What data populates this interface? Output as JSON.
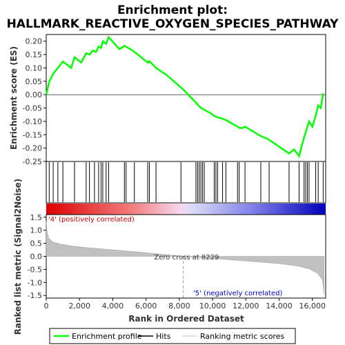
{
  "chart_data": {
    "type": "line",
    "title_line1": "Enrichment plot:",
    "title_line2": "HALLMARK_REACTIVE_OXYGEN_SPECIES_PATHWAY",
    "top_panel": {
      "ylabel": "Enrichment score (ES)",
      "ylim": [
        -0.25,
        0.225
      ],
      "yticks": [
        "0.20",
        "0.15",
        "0.10",
        "0.05",
        "0.00",
        "-0.05",
        "-0.10",
        "-0.15",
        "-0.20",
        "-0.25"
      ],
      "ytick_values": [
        0.2,
        0.15,
        0.1,
        0.05,
        0.0,
        -0.05,
        -0.1,
        -0.15,
        -0.2,
        -0.25
      ],
      "series_color": "#00ff00",
      "x": [
        0,
        180,
        420,
        700,
        1000,
        1500,
        1700,
        2100,
        2400,
        2600,
        2800,
        3000,
        3150,
        3300,
        3400,
        3600,
        3750,
        4400,
        4700,
        5200,
        6100,
        6200,
        6600,
        7200,
        8229,
        9000,
        9300,
        9900,
        10100,
        10300,
        10600,
        10800,
        11500,
        11650,
        11800,
        11950,
        12900,
        13300,
        14600,
        14900,
        15200,
        15500,
        15650,
        15800,
        16000,
        16200,
        16350,
        16500,
        16650
      ],
      "y": [
        0.0,
        0.048,
        0.078,
        0.1,
        0.124,
        0.1,
        0.14,
        0.12,
        0.155,
        0.15,
        0.165,
        0.16,
        0.18,
        0.175,
        0.2,
        0.19,
        0.215,
        0.17,
        0.183,
        0.165,
        0.12,
        0.125,
        0.1,
        0.075,
        0.02,
        -0.03,
        -0.05,
        -0.07,
        -0.08,
        -0.085,
        -0.09,
        -0.095,
        -0.12,
        -0.125,
        -0.125,
        -0.12,
        -0.155,
        -0.165,
        -0.22,
        -0.205,
        -0.23,
        -0.16,
        -0.13,
        -0.1,
        -0.12,
        -0.08,
        -0.04,
        -0.05,
        0.005
      ]
    },
    "hits": [
      180,
      420,
      700,
      1000,
      1700,
      2400,
      2600,
      2900,
      3150,
      3300,
      3400,
      3600,
      3750,
      4700,
      4800,
      5300,
      6100,
      6200,
      6600,
      8100,
      9000,
      9100,
      9200,
      9300,
      9400,
      9500,
      10100,
      10200,
      10300,
      10600,
      10800,
      11500,
      11600,
      11950,
      12900,
      13400,
      14600,
      15200,
      15500,
      15600,
      15700,
      15800,
      16200,
      16350,
      16650
    ],
    "bottom_panel": {
      "ylabel": "Ranked list metric (Signal2Noise)",
      "xlabel": "Rank in Ordered Dataset",
      "ylim": [
        -1.6,
        1.6
      ],
      "yticks": [
        "1.5",
        "1.0",
        "0.5",
        "0.0",
        "-0.5",
        "-1.0",
        "-1.5"
      ],
      "ytick_values": [
        1.5,
        1.0,
        0.5,
        0.0,
        -0.5,
        -1.0,
        -1.5
      ],
      "xlim": [
        0,
        16800
      ],
      "xticks": [
        "0",
        "2,000",
        "4,000",
        "6,000",
        "8,000",
        "10,000",
        "12,000",
        "14,000",
        "16,000"
      ],
      "xtick_values": [
        0,
        2000,
        4000,
        6000,
        8000,
        10000,
        12000,
        14000,
        16000
      ],
      "metric_x": [
        0,
        50,
        150,
        400,
        800,
        1500,
        2500,
        4000,
        6000,
        8229,
        10000,
        12000,
        14000,
        15000,
        15800,
        16300,
        16600,
        16700
      ],
      "metric_y": [
        1.35,
        0.95,
        0.7,
        0.55,
        0.48,
        0.4,
        0.33,
        0.25,
        0.14,
        0.0,
        -0.08,
        -0.18,
        -0.28,
        -0.36,
        -0.48,
        -0.65,
        -0.9,
        -1.45
      ],
      "zero_cross_label": "Zero cross at 8229",
      "zero_cross": 8229,
      "pos_label": "'4' (positively correlated)",
      "neg_label": "'5' (negatively correlated)"
    },
    "legend": [
      {
        "label": "Enrichment profile",
        "color": "#00ff00"
      },
      {
        "label": "Hits",
        "color": "#000000"
      },
      {
        "label": "Ranking metric scores",
        "color": "#c0c0c0"
      }
    ]
  }
}
